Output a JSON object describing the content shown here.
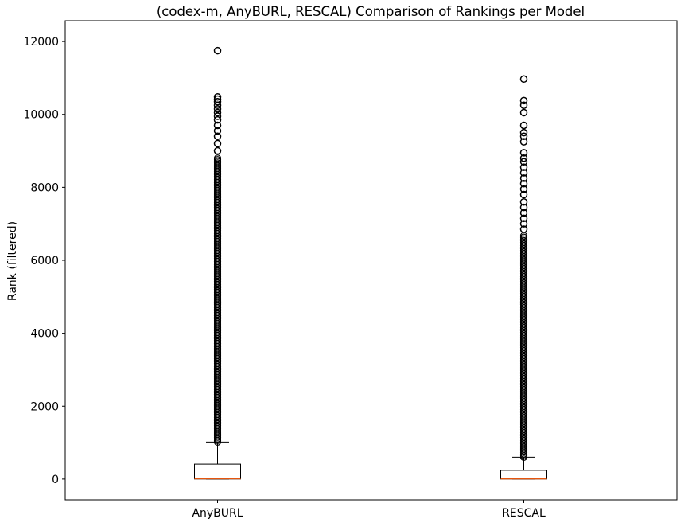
{
  "chart_data": {
    "type": "boxplot",
    "title": "(codex-m, AnyBURL, RESCAL) Comparison of Rankings per Model",
    "xlabel": "",
    "ylabel": "Rank (filtered)",
    "ylim": [
      -570,
      12570
    ],
    "yticks": [
      0,
      2000,
      4000,
      6000,
      8000,
      10000,
      12000
    ],
    "categories": [
      "AnyBURL",
      "RESCAL"
    ],
    "grid": false,
    "series": [
      {
        "name": "AnyBURL",
        "q1": 2,
        "median": 12,
        "q3": 410,
        "whisker_low": 1,
        "whisker_high": 1015,
        "outliers_dense_range": [
          1015,
          8800
        ],
        "outliers": [
          9000,
          9200,
          9400,
          9550,
          9700,
          9850,
          9950,
          10050,
          10150,
          10250,
          10350,
          10420,
          10480,
          11750
        ]
      },
      {
        "name": "RESCAL",
        "q1": 2,
        "median": 8,
        "q3": 240,
        "whisker_low": 1,
        "whisker_high": 600,
        "outliers_dense_range": [
          600,
          6700
        ],
        "outliers": [
          6850,
          7000,
          7150,
          7300,
          7450,
          7600,
          7800,
          7950,
          8100,
          8250,
          8400,
          8550,
          8700,
          8800,
          8950,
          9250,
          9400,
          9500,
          9700,
          10050,
          10250,
          10380,
          10970
        ]
      }
    ]
  },
  "colors": {
    "median": "#e6550d",
    "box": "#000000",
    "outlier": "#000000"
  }
}
